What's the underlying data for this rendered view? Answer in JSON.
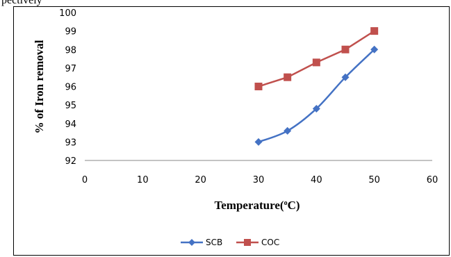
{
  "page_fragment": "pectively",
  "chart_data": {
    "type": "line",
    "title": "",
    "xlabel": "Temperature(",
    "xlabel_sup": "o",
    "xlabel_suffix": "C)",
    "ylabel": "% of Iron removal",
    "xlim": [
      0,
      60
    ],
    "ylim": [
      92,
      100
    ],
    "xticks": [
      0,
      10,
      20,
      30,
      40,
      50,
      60
    ],
    "yticks": [
      92,
      93,
      94,
      95,
      96,
      97,
      98,
      99,
      100
    ],
    "grid": false,
    "legend_position": "bottom",
    "series": [
      {
        "name": "SCB",
        "color": "#4472C4",
        "marker": "diamond",
        "x": [
          30,
          35,
          40,
          45,
          50
        ],
        "y": [
          93,
          93.6,
          94.8,
          96.5,
          98
        ]
      },
      {
        "name": "COC",
        "color": "#C0504D",
        "marker": "square",
        "x": [
          30,
          35,
          40,
          45,
          50
        ],
        "y": [
          96,
          96.5,
          97.3,
          98,
          99
        ]
      }
    ]
  }
}
